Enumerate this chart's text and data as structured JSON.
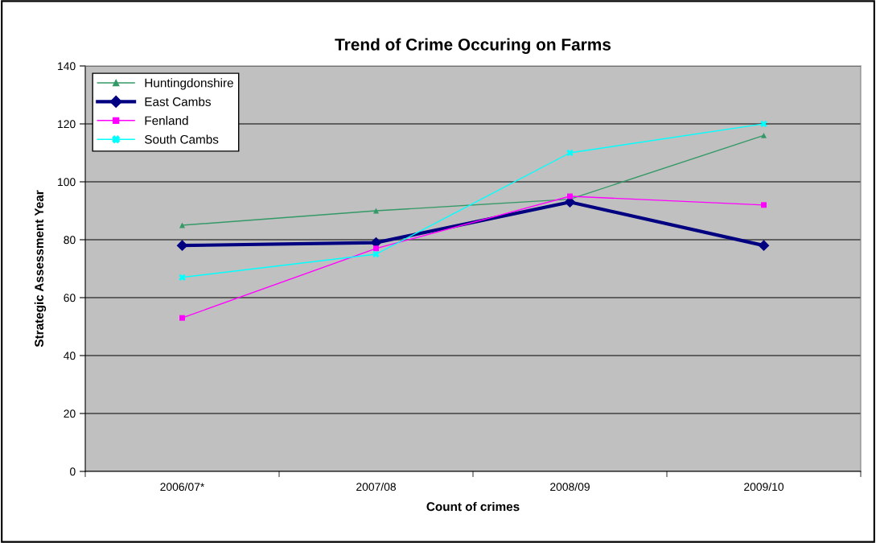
{
  "chart_data": {
    "type": "line",
    "title": "Trend of Crime Occuring on Farms",
    "xlabel": "Count of crimes",
    "ylabel": "Strategic Assessment Year",
    "categories": [
      "2006/07*",
      "2007/08",
      "2008/09",
      "2009/10"
    ],
    "series": [
      {
        "name": "Huntingdonshire",
        "color": "#339966",
        "marker": "triangle",
        "values": [
          85,
          90,
          94,
          116
        ]
      },
      {
        "name": "East Cambs",
        "color": "#000080",
        "marker": "diamond",
        "values": [
          78,
          79,
          93,
          78
        ]
      },
      {
        "name": "Fenland",
        "color": "#ff00ff",
        "marker": "square",
        "values": [
          53,
          77,
          95,
          92
        ]
      },
      {
        "name": "South Cambs",
        "color": "#00ffff",
        "marker": "cross",
        "values": [
          67,
          75,
          110,
          120
        ]
      }
    ],
    "ylim": [
      0,
      140
    ],
    "yticks": [
      0,
      20,
      40,
      60,
      80,
      100,
      120,
      140
    ],
    "grid": "y",
    "legend": "top left",
    "line_style": "solid"
  }
}
